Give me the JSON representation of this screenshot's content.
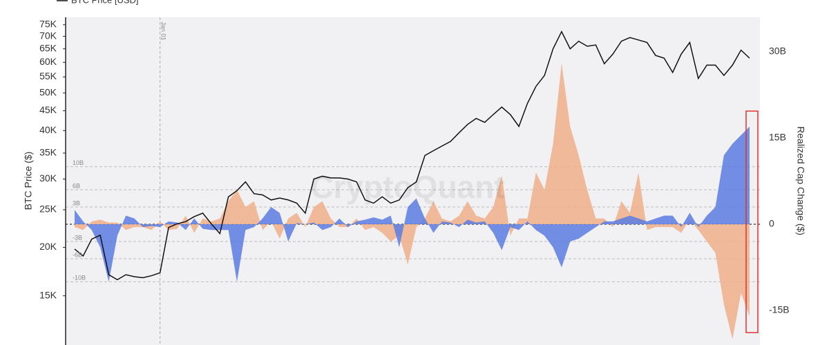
{
  "chart_data": {
    "type": "line_area",
    "legend": "top",
    "watermark": "CryptoQuant",
    "ylabel": "BTC Price ($)",
    "y2label": "Realized Cap Change ($)",
    "ylog": true,
    "ylim": [
      11200,
      78400
    ],
    "yticks": [
      {
        "value": 15000,
        "label": "15K"
      },
      {
        "value": 20000,
        "label": "20K"
      },
      {
        "value": 25000,
        "label": "25K"
      },
      {
        "value": 30000,
        "label": "30K"
      },
      {
        "value": 35000,
        "label": "35K"
      },
      {
        "value": 40000,
        "label": "40K"
      },
      {
        "value": 45000,
        "label": "45K"
      },
      {
        "value": 50000,
        "label": "50K"
      },
      {
        "value": 55000,
        "label": "55K"
      },
      {
        "value": 60000,
        "label": "60K"
      },
      {
        "value": 65000,
        "label": "65K"
      },
      {
        "value": 70000,
        "label": "70K"
      },
      {
        "value": 75000,
        "label": "75K"
      }
    ],
    "y2lim": [
      -21,
      36
    ],
    "y2ticks": [
      {
        "value": -15,
        "label": "-15B"
      },
      0,
      {
        "value": 15,
        "label": "15B"
      },
      {
        "value": 30,
        "label": "30B"
      }
    ],
    "reference_lines": [
      {
        "value": 10,
        "label": "10B"
      },
      {
        "value": 6,
        "label": "6B"
      },
      {
        "value": 3,
        "label": "3B"
      },
      {
        "value": -3,
        "label": "-3B"
      },
      {
        "value": -6,
        "label": "-6B"
      },
      {
        "value": -10,
        "label": "-10B"
      }
    ],
    "categories": [
      null,
      null,
      null,
      null,
      null,
      null,
      null,
      null,
      null,
      null,
      "Jan 01",
      null,
      null,
      null,
      null,
      null,
      null,
      null,
      null,
      null,
      null,
      null,
      null,
      null,
      null,
      null,
      null,
      null,
      null,
      null,
      null,
      null,
      null,
      null,
      null,
      null,
      null,
      null,
      null,
      null,
      null,
      null,
      null,
      null,
      null,
      null,
      null,
      null,
      null,
      null,
      null,
      null,
      null,
      null,
      null,
      null,
      null,
      null,
      null,
      null,
      null,
      null,
      null,
      null,
      null,
      null,
      null,
      null,
      null,
      null,
      null,
      null,
      null,
      null,
      null,
      null,
      null,
      null,
      null,
      null
    ],
    "series": [
      {
        "color": "#f0b08a",
        "kind": "area",
        "axis": "y2",
        "values": [
          -0.5,
          -1,
          0.5,
          0.8,
          0.3,
          0.3,
          -1,
          -0.5,
          -0.5,
          -1,
          0.5,
          -1,
          -0.8,
          1.5,
          -1.5,
          1,
          0.5,
          1,
          4,
          6,
          3,
          4,
          -1,
          0.5,
          -2.5,
          1,
          2,
          -0.5,
          3,
          4,
          1,
          -0.5,
          -0.5,
          1,
          -1,
          -0.5,
          -1.5,
          -3,
          -2,
          -7,
          -0.5,
          1,
          4,
          1,
          0.5,
          1.5,
          4,
          1.5,
          1,
          3,
          8.5,
          -2,
          1,
          1,
          9,
          6,
          14,
          28,
          17,
          12,
          6,
          1,
          1,
          -0.5,
          4,
          2,
          9,
          -1,
          -0.5,
          -0.5,
          -0.5,
          -1.5,
          0.8,
          -1,
          -3,
          -5,
          -14,
          -20,
          -12,
          -16
        ]
      },
      {
        "color": "#5a7de0",
        "kind": "area",
        "axis": "y2",
        "values": [
          2.5,
          0.5,
          -1,
          -4,
          -10,
          -2,
          1.5,
          1,
          -0.5,
          -0.3,
          -0.5,
          0.5,
          0.3,
          -1,
          1,
          -0.8,
          -1,
          -1,
          -1,
          -10,
          -1,
          -0.5,
          1,
          3,
          2,
          -3,
          0.2,
          0,
          0.3,
          -1,
          -0.5,
          1,
          -0.5,
          0.5,
          0.8,
          1.2,
          0.8,
          1.5,
          -4,
          3,
          4.5,
          1,
          -1.5,
          0.5,
          0.3,
          -0.5,
          0.8,
          0.3,
          0.5,
          -1.5,
          -4.5,
          -0.5,
          -1,
          0.5,
          -1,
          -2,
          -4,
          -7.5,
          -3,
          -2.5,
          -1.5,
          -0.5,
          0.5,
          0.5,
          1,
          1.5,
          1,
          0.5,
          1,
          1.5,
          1.5,
          -0.5,
          2,
          -0.5,
          1.5,
          3,
          12,
          14,
          15.5,
          17
        ]
      },
      {
        "name": "BTC Price [USD]",
        "color": "#111111",
        "kind": "line",
        "axis": "y",
        "values": [
          19800,
          19000,
          21000,
          21500,
          17000,
          16500,
          17000,
          16800,
          16700,
          16900,
          17200,
          22500,
          23000,
          23300,
          24000,
          24500,
          23000,
          21700,
          27000,
          28000,
          29500,
          27500,
          27300,
          26500,
          26800,
          26500,
          26000,
          24500,
          30000,
          30500,
          30200,
          30200,
          30000,
          29500,
          26500,
          26000,
          27000,
          26000,
          26500,
          28500,
          29500,
          34500,
          35500,
          36500,
          37500,
          39500,
          41500,
          43000,
          42000,
          44000,
          46000,
          44000,
          41000,
          47000,
          52000,
          55500,
          65000,
          72000,
          65000,
          68000,
          66000,
          66500,
          59500,
          63000,
          68000,
          69500,
          68500,
          67500,
          62500,
          61500,
          56500,
          63000,
          67500,
          54500,
          59000,
          59000,
          55500,
          59000,
          64500,
          61500
        ]
      }
    ]
  }
}
